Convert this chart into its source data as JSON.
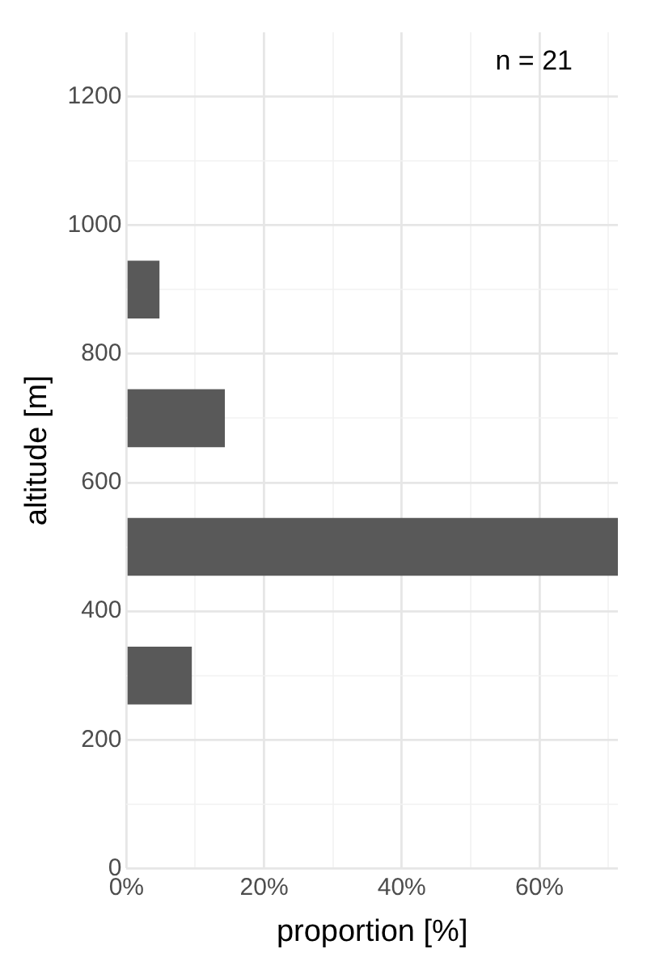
{
  "chart_data": {
    "type": "histogram",
    "orientation": "horizontal",
    "xlabel": "proportion [%]",
    "ylabel": "altitude [m]",
    "bins": [
      200,
      400,
      600,
      800,
      1000
    ],
    "values": [
      9.5,
      71.4,
      14.3,
      4.8
    ],
    "color": "#595959",
    "xlim": [
      0,
      71.4
    ],
    "xticks": [
      {
        "value": 0,
        "label": "0%"
      },
      {
        "value": 10,
        "label": null
      },
      {
        "value": 20,
        "label": "20%"
      },
      {
        "value": 30,
        "label": null
      },
      {
        "value": 40,
        "label": "40%"
      },
      {
        "value": 50,
        "label": null
      },
      {
        "value": 60,
        "label": "60%"
      },
      {
        "value": 70,
        "label": null
      }
    ],
    "ylim": [
      0,
      1300
    ],
    "yticks": [
      0,
      {
        "value": 100,
        "label": null
      },
      200,
      {
        "value": 300,
        "label": null
      },
      400,
      {
        "value": 500,
        "label": null
      },
      600,
      {
        "value": 700,
        "label": null
      },
      800,
      {
        "value": 900,
        "label": null
      },
      1000,
      {
        "value": 1100,
        "label": null
      },
      1200
    ],
    "grid": true,
    "annotations": [
      "n = 21"
    ]
  }
}
